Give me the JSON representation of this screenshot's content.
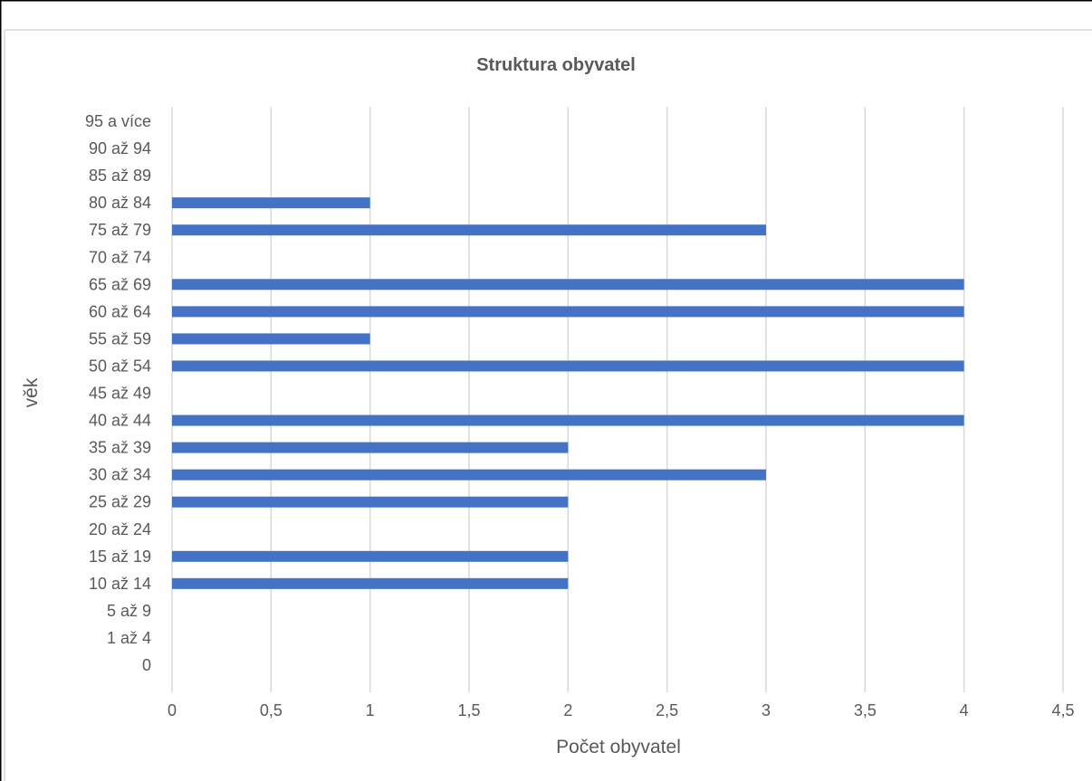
{
  "chart_data": {
    "type": "bar",
    "orientation": "horizontal",
    "title": "Struktura obyvatel",
    "xlabel": "Počet obyvatel",
    "ylabel": "věk",
    "categories": [
      "0",
      "1 až 4",
      "5 až 9",
      "10 až 14",
      "15 až 19",
      "20 až 24",
      "25 až 29",
      "30 až 34",
      "35 až 39",
      "40 až 44",
      "45 až 49",
      "50 až 54",
      "55 až 59",
      "60 až 64",
      "65 až 69",
      "70 až 74",
      "75 až 79",
      "80 až 84",
      "85 až 89",
      "90 až 94",
      "95 a více"
    ],
    "values": [
      0,
      0,
      0,
      2,
      2,
      0,
      2,
      3,
      2,
      4,
      0,
      4,
      1,
      4,
      4,
      0,
      3,
      1,
      0,
      0,
      0
    ],
    "xlim": [
      0,
      4.5
    ],
    "xticks": [
      "0",
      "0,5",
      "1",
      "1,5",
      "2",
      "2,5",
      "3",
      "3,5",
      "4",
      "4,5"
    ],
    "grid": "vertical",
    "legend": "none",
    "colors": {
      "bar": "#4472c4",
      "grid": "#d9d9d9",
      "text": "#595959",
      "frame": "#000000"
    }
  }
}
